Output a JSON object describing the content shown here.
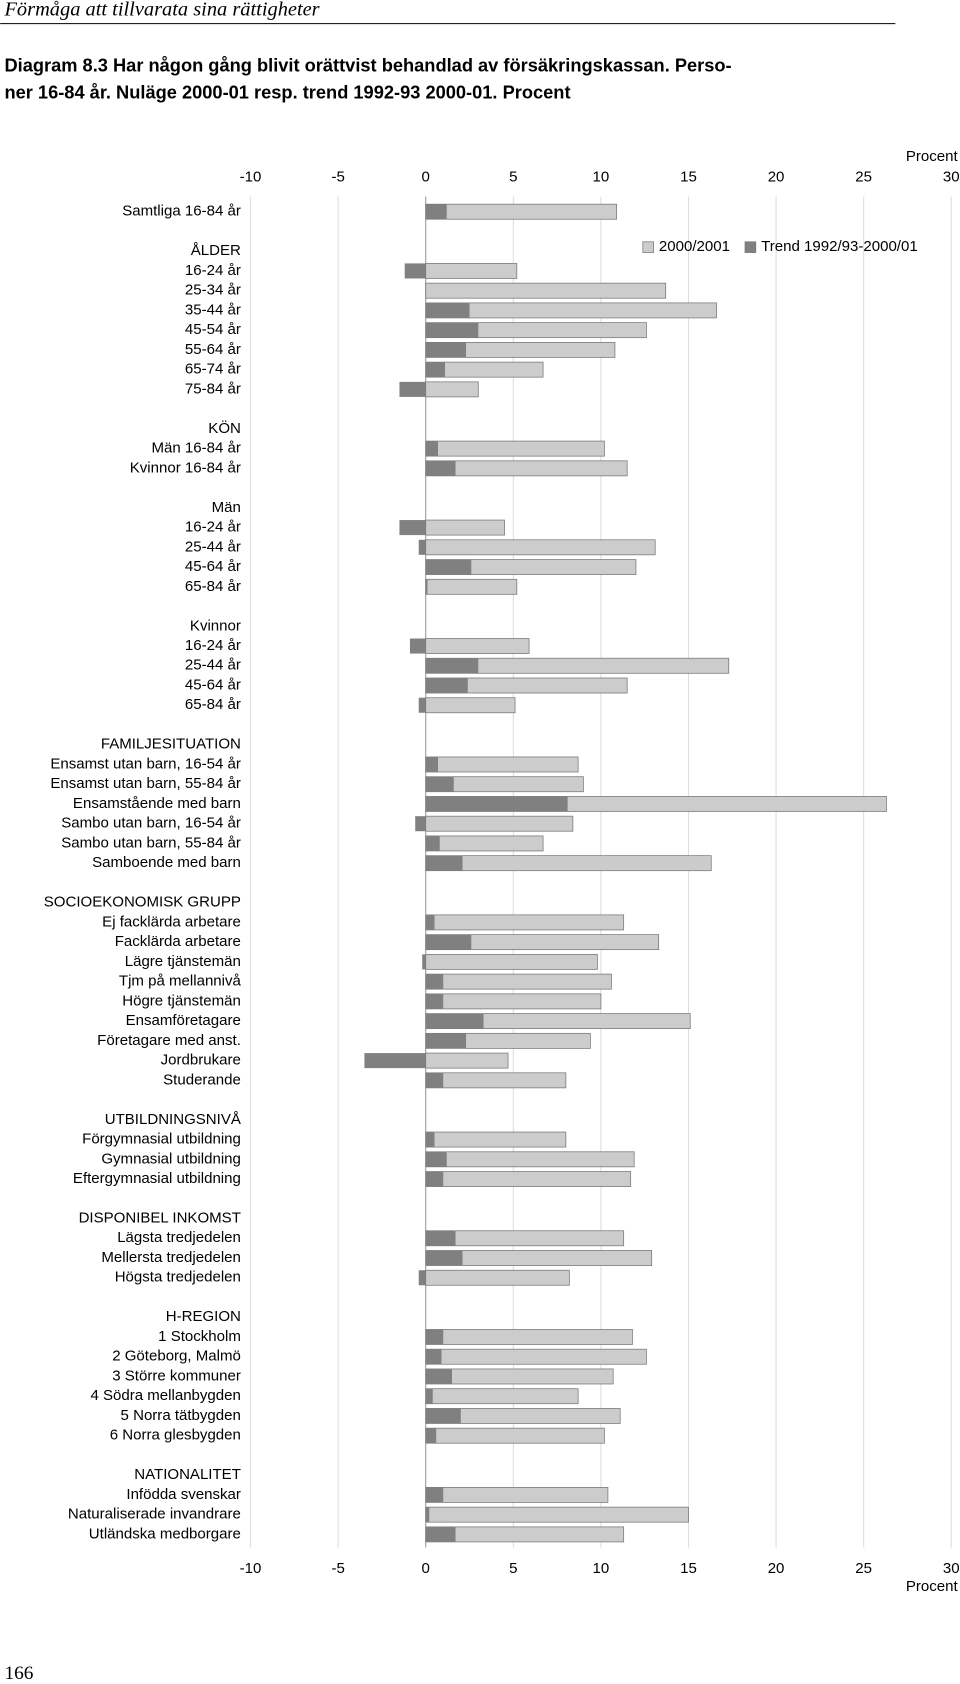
{
  "page_header": "Förmåga att tillvarata sina rättigheter",
  "page_number": "166",
  "chart_data": {
    "type": "bar",
    "orientation": "horizontal",
    "title": [
      "Diagram 8.3  Har någon gång blivit orättvist behandlad av försäkringskassan. Perso-",
      "ner 16-84 år. Nuläge 2000-01 resp. trend 1992-93 2000-01. Procent"
    ],
    "xlabel": "Procent",
    "xlim": [
      -10,
      30
    ],
    "xticks": [
      -10,
      -5,
      0,
      5,
      10,
      15,
      20,
      25,
      30
    ],
    "grid": true,
    "legend": "top-right",
    "categories": [
      "Samtliga 16-84 år",
      null,
      "ÅLDER",
      "16-24 år",
      "25-34 år",
      "35-44 år",
      "45-54 år",
      "55-64 år",
      "65-74 år",
      "75-84 år",
      null,
      "KÖN",
      "Män 16-84 år",
      "Kvinnor 16-84 år",
      null,
      "Män",
      "16-24 år",
      "25-44 år",
      "45-64 år",
      "65-84 år",
      null,
      "Kvinnor",
      "16-24 år",
      "25-44 år",
      "45-64 år",
      "65-84 år",
      null,
      "FAMILJESITUATION",
      "Ensamst utan barn, 16-54 år",
      "Ensamst utan barn, 55-84 år",
      "Ensamstående med barn",
      "Sambo utan barn, 16-54 år",
      "Sambo utan barn, 55-84 år",
      "Samboende med barn",
      null,
      "SOCIOEKONOMISK GRUPP",
      "Ej facklärda arbetare",
      "Facklärda arbetare",
      "Lägre tjänstemän",
      "Tjm på mellannivå",
      "Högre tjänstemän",
      "Ensamföretagare",
      "Företagare med anst.",
      "Jordbrukare",
      "Studerande",
      null,
      "UTBILDNINGSNIVÅ",
      "Förgymnasial utbildning",
      "Gymnasial utbildning",
      "Eftergymnasial utbildning",
      null,
      "DISPONIBEL INKOMST",
      "Lägsta tredjedelen",
      "Mellersta tredjedelen",
      "Högsta tredjedelen",
      null,
      "H-REGION",
      "1 Stockholm",
      "2 Göteborg, Malmö",
      "3 Större kommuner",
      "4 Södra mellanbygden",
      "5 Norra tätbygden",
      "6 Norra glesbygden",
      null,
      "NATIONALITET",
      "Infödda svenskar",
      "Naturaliserade invandrare",
      "Utländska medborgare"
    ],
    "series": [
      {
        "name": "2000/2001",
        "color": "#cccccc",
        "values": [
          10.9,
          null,
          null,
          5.2,
          13.7,
          16.6,
          12.6,
          10.8,
          6.7,
          3.0,
          null,
          null,
          10.2,
          11.5,
          null,
          null,
          4.5,
          13.1,
          12.0,
          5.2,
          null,
          null,
          5.9,
          17.3,
          11.5,
          5.1,
          null,
          null,
          8.7,
          9.0,
          26.3,
          8.4,
          6.7,
          16.3,
          null,
          null,
          11.3,
          13.3,
          9.8,
          10.6,
          10.0,
          15.1,
          9.4,
          4.7,
          8.0,
          null,
          null,
          8.0,
          11.9,
          11.7,
          null,
          null,
          11.3,
          12.9,
          8.2,
          null,
          null,
          11.8,
          12.6,
          10.7,
          8.7,
          11.1,
          10.2,
          null,
          null,
          10.4,
          15.0,
          11.3
        ]
      },
      {
        "name": "Trend 1992/93-2000/01",
        "color": "#808080",
        "values": [
          1.2,
          null,
          null,
          -1.2,
          0,
          2.5,
          3.0,
          2.3,
          1.1,
          -1.5,
          null,
          null,
          0.7,
          1.7,
          null,
          null,
          -1.5,
          -0.4,
          2.6,
          0.1,
          null,
          null,
          -0.9,
          3.0,
          2.4,
          -0.4,
          null,
          null,
          0.7,
          1.6,
          8.1,
          -0.6,
          0.8,
          2.1,
          null,
          null,
          0.5,
          2.6,
          -0.2,
          1.0,
          1.0,
          3.3,
          2.3,
          -3.5,
          1.0,
          null,
          null,
          0.5,
          1.2,
          1.0,
          null,
          null,
          1.7,
          2.1,
          -0.4,
          null,
          null,
          1.0,
          0.9,
          1.5,
          0.4,
          2.0,
          0.6,
          null,
          null,
          1.0,
          0.2,
          1.7
        ]
      }
    ]
  }
}
